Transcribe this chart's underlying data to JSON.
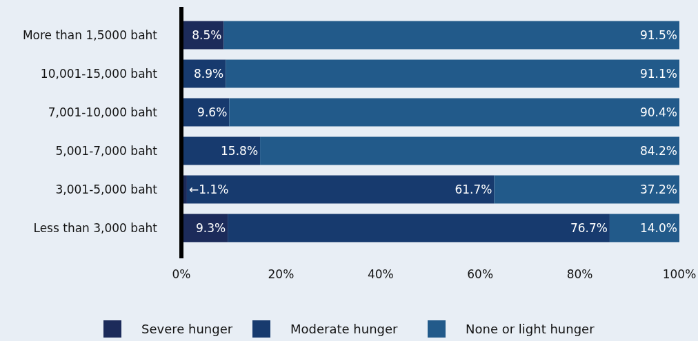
{
  "chart_data": {
    "type": "bar",
    "orientation": "horizontal",
    "stacked": true,
    "categories": [
      "More than 1,5000 baht",
      "10,001-15,000 baht",
      "7,001-10,000 baht",
      "5,001-7,000 baht",
      "3,001-5,000 baht",
      "Less than 3,000 baht"
    ],
    "series": [
      {
        "name": "Severe hunger",
        "color": "#1c2b5a",
        "values": [
          8.5,
          null,
          null,
          null,
          1.1,
          9.3
        ],
        "value_labels": [
          "8.5%",
          null,
          null,
          null,
          "←1.1%",
          "9.3%"
        ]
      },
      {
        "name": "Moderate hunger",
        "color": "#173a6e",
        "values": [
          null,
          8.9,
          9.6,
          15.8,
          61.7,
          76.7
        ],
        "value_labels": [
          null,
          "8.9%",
          "9.6%",
          "15.8%",
          "61.7%",
          "76.7%"
        ]
      },
      {
        "name": "None or light hunger",
        "color": "#225a8a",
        "values": [
          91.5,
          91.1,
          90.4,
          84.2,
          37.2,
          14.0
        ],
        "value_labels": [
          "91.5%",
          "91.1%",
          "90.4%",
          "84.2%",
          "37.2%",
          "14.0%"
        ]
      }
    ],
    "xlim": [
      0,
      100
    ],
    "xticks": [
      {
        "value": 0,
        "label": "0%"
      },
      {
        "value": 20,
        "label": "20%"
      },
      {
        "value": 40,
        "label": "40%"
      },
      {
        "value": 60,
        "label": "60%"
      },
      {
        "value": 80,
        "label": "80%"
      },
      {
        "value": 100,
        "label": "100%"
      }
    ],
    "legend": "bottom",
    "grid": false
  }
}
